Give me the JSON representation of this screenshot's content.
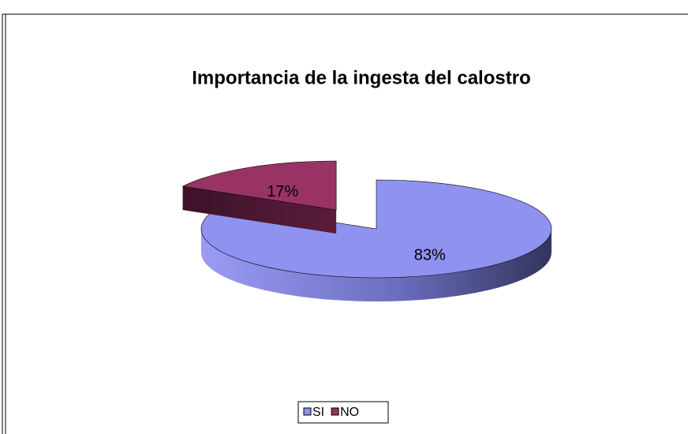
{
  "chart_data": {
    "type": "pie3d",
    "title": "Importancia de la ingesta del calostro",
    "categories": [
      "SI",
      "NO"
    ],
    "values": [
      83,
      17
    ],
    "value_labels": [
      "83%",
      "17%"
    ],
    "colors": [
      "#8f92ef",
      "#993366"
    ],
    "legend": "bottom"
  }
}
